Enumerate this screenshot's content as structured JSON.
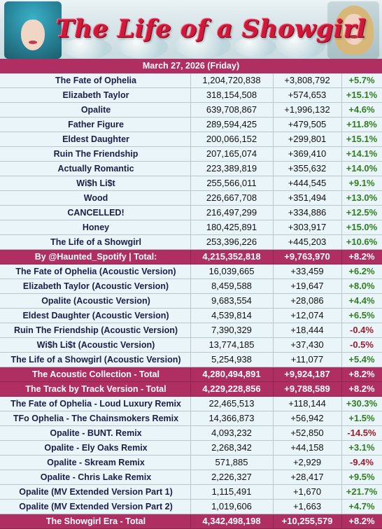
{
  "header": {
    "title": "The Life of a Showgirl",
    "date": "March 27, 2026 (Friday)"
  },
  "colors": {
    "accent": "#b02f62",
    "row_bg": "#eaf5f9",
    "positive": "#2f7f1f",
    "negative": "#a01a2a"
  },
  "rows": [
    {
      "name": "The Fate of Ophelia",
      "total": "1,204,720,838",
      "gain": "+3,808,792",
      "pct": "+5.7%",
      "type": "song"
    },
    {
      "name": "Elizabeth Taylor",
      "total": "318,154,508",
      "gain": "+574,653",
      "pct": "+15.1%",
      "type": "song"
    },
    {
      "name": "Opalite",
      "total": "639,708,867",
      "gain": "+1,996,132",
      "pct": "+4.6%",
      "type": "song"
    },
    {
      "name": "Father Figure",
      "total": "289,594,425",
      "gain": "+479,505",
      "pct": "+11.8%",
      "type": "song"
    },
    {
      "name": "Eldest Daughter",
      "total": "200,066,152",
      "gain": "+299,801",
      "pct": "+15.1%",
      "type": "song"
    },
    {
      "name": "Ruin The Friendship",
      "total": "207,165,074",
      "gain": "+369,410",
      "pct": "+14.1%",
      "type": "song"
    },
    {
      "name": "Actually Romantic",
      "total": "223,389,819",
      "gain": "+355,632",
      "pct": "+14.0%",
      "type": "song"
    },
    {
      "name": "Wi$h Li$t",
      "total": "255,566,011",
      "gain": "+444,545",
      "pct": "+9.1%",
      "type": "song"
    },
    {
      "name": "Wood",
      "total": "226,667,708",
      "gain": "+351,494",
      "pct": "+13.0%",
      "type": "song"
    },
    {
      "name": "CANCELLED!",
      "total": "216,497,299",
      "gain": "+334,886",
      "pct": "+12.5%",
      "type": "song"
    },
    {
      "name": "Honey",
      "total": "180,425,891",
      "gain": "+303,917",
      "pct": "+15.0%",
      "type": "song"
    },
    {
      "name": "The Life of a Showgirl",
      "total": "253,396,226",
      "gain": "+445,203",
      "pct": "+10.6%",
      "type": "song"
    },
    {
      "name": "By @Haunted_Spotify | Total:",
      "total": "4,215,352,818",
      "gain": "+9,763,970",
      "pct": "+8.2%",
      "type": "total"
    },
    {
      "name": "The Fate of Ophelia (Acoustic Version)",
      "total": "16,039,665",
      "gain": "+33,459",
      "pct": "+6.2%",
      "type": "song"
    },
    {
      "name": "Elizabeth Taylor (Acoustic Version)",
      "total": "8,459,588",
      "gain": "+19,647",
      "pct": "+8.0%",
      "type": "song"
    },
    {
      "name": "Opalite (Acoustic Version)",
      "total": "9,683,554",
      "gain": "+28,086",
      "pct": "+4.4%",
      "type": "song"
    },
    {
      "name": "Eldest Daughter (Acoustic Version)",
      "total": "4,539,814",
      "gain": "+12,074",
      "pct": "+6.5%",
      "type": "song"
    },
    {
      "name": "Ruin The Friendship (Acoustic Version)",
      "total": "7,390,329",
      "gain": "+18,444",
      "pct": "-0.4%",
      "type": "song"
    },
    {
      "name": "Wi$h Li$t (Acoustic Version)",
      "total": "13,774,185",
      "gain": "+37,430",
      "pct": "-0.5%",
      "type": "song"
    },
    {
      "name": "The Life of a Showgirl (Acoustic Version)",
      "total": "5,254,938",
      "gain": "+11,077",
      "pct": "+5.4%",
      "type": "song"
    },
    {
      "name": "The Acoustic Collection - Total",
      "total": "4,280,494,891",
      "gain": "+9,924,187",
      "pct": "+8.2%",
      "type": "total"
    },
    {
      "name": "The Track by Track Version - Total",
      "total": "4,229,228,856",
      "gain": "+9,788,589",
      "pct": "+8.2%",
      "type": "total"
    },
    {
      "name": "The Fate of Ophelia - Loud Luxury Remix",
      "total": "22,465,513",
      "gain": "+118,144",
      "pct": "+30.3%",
      "type": "song"
    },
    {
      "name": "TFo Ophelia - The Chainsmokers Remix",
      "total": "14,366,873",
      "gain": "+56,942",
      "pct": "+1.5%",
      "type": "song"
    },
    {
      "name": "Opalite - BUNT. Remix",
      "total": "4,093,232",
      "gain": "+52,850",
      "pct": "-14.5%",
      "type": "song"
    },
    {
      "name": "Opalite - Ely Oaks Remix",
      "total": "2,268,342",
      "gain": "+44,158",
      "pct": "+3.1%",
      "type": "song"
    },
    {
      "name": "Opalite - Skream Remix",
      "total": "571,885",
      "gain": "+2,929",
      "pct": "-9.4%",
      "type": "song"
    },
    {
      "name": "Opalite - Chris Lake Remix",
      "total": "2,226,327",
      "gain": "+28,417",
      "pct": "+9.5%",
      "type": "song"
    },
    {
      "name": "Opalite (MV Extended Version Part 1)",
      "total": "1,115,491",
      "gain": "+1,670",
      "pct": "+21.7%",
      "type": "song"
    },
    {
      "name": "Opalite (MV Extended Version Part 2)",
      "total": "1,019,606",
      "gain": "+1,663",
      "pct": "+4.7%",
      "type": "song"
    },
    {
      "name": "The Showgirl Era - Total",
      "total": "4,342,498,198",
      "gain": "+10,255,579",
      "pct": "+8.2%",
      "type": "total"
    }
  ]
}
